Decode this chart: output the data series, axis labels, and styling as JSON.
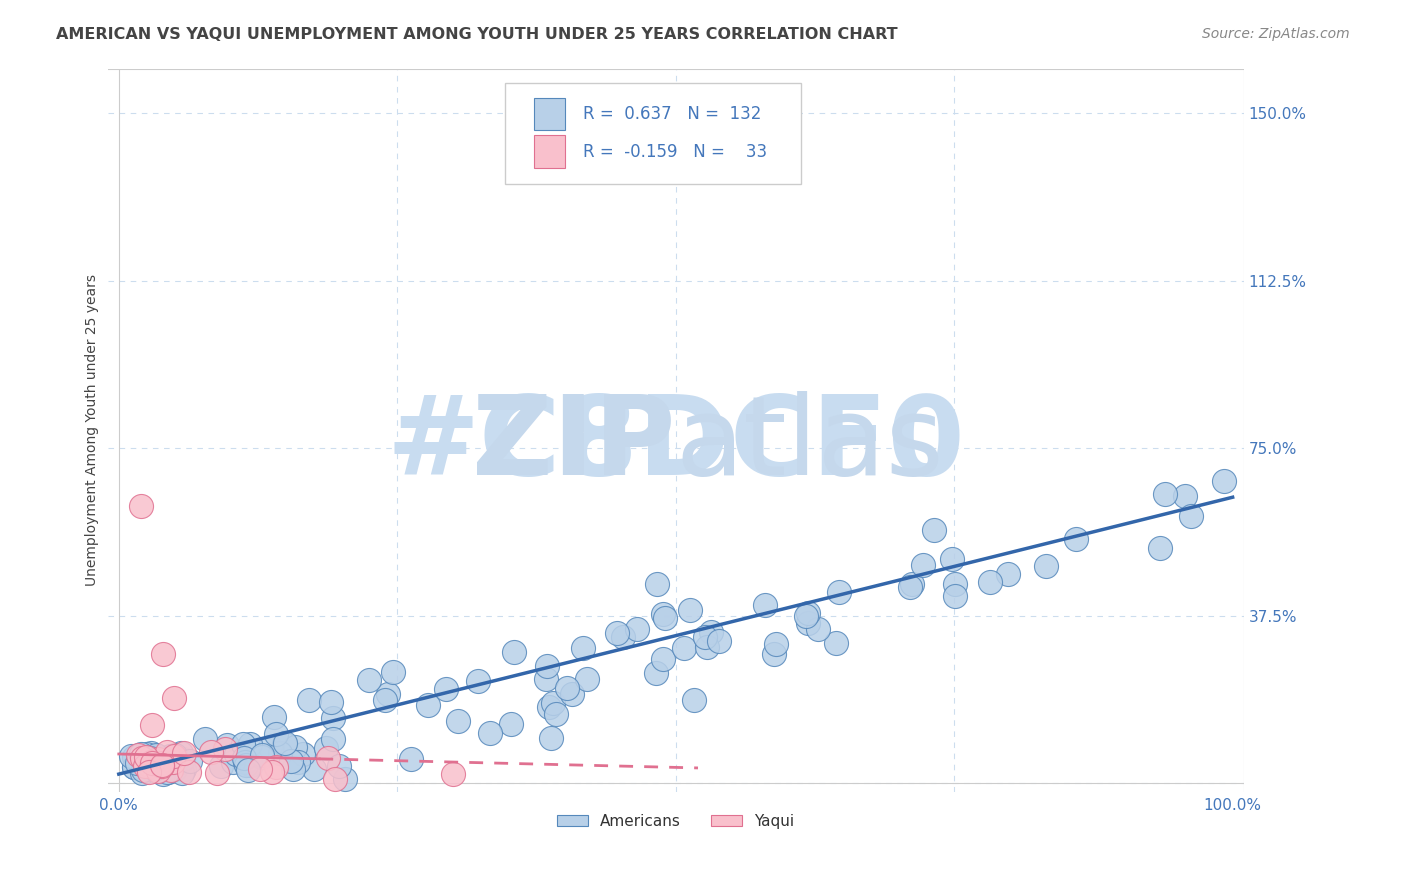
{
  "title": "AMERICAN VS YAQUI UNEMPLOYMENT AMONG YOUTH UNDER 25 YEARS CORRELATION CHART",
  "source": "Source: ZipAtlas.com",
  "ylabel": "Unemployment Among Youth under 25 years",
  "xlim": [
    -0.01,
    1.01
  ],
  "ylim": [
    -0.02,
    1.6
  ],
  "ytick_positions": [
    0.0,
    0.375,
    0.75,
    1.125,
    1.5
  ],
  "yticklabels_right": [
    "",
    "37.5%",
    "75.0%",
    "112.5%",
    "150.0%"
  ],
  "R_american": 0.637,
  "N_american": 132,
  "R_yaqui": -0.159,
  "N_yaqui": 33,
  "blue_fill": "#B8D0E8",
  "blue_edge": "#5588BB",
  "pink_fill": "#F9C0CC",
  "pink_edge": "#E07090",
  "trend_blue": "#3366AA",
  "trend_pink": "#E07090",
  "watermark_color": "#C8DCF0",
  "grid_color": "#CCDDEE",
  "title_color": "#444444",
  "axis_color": "#4477BB",
  "legend_text_color": "#333333"
}
